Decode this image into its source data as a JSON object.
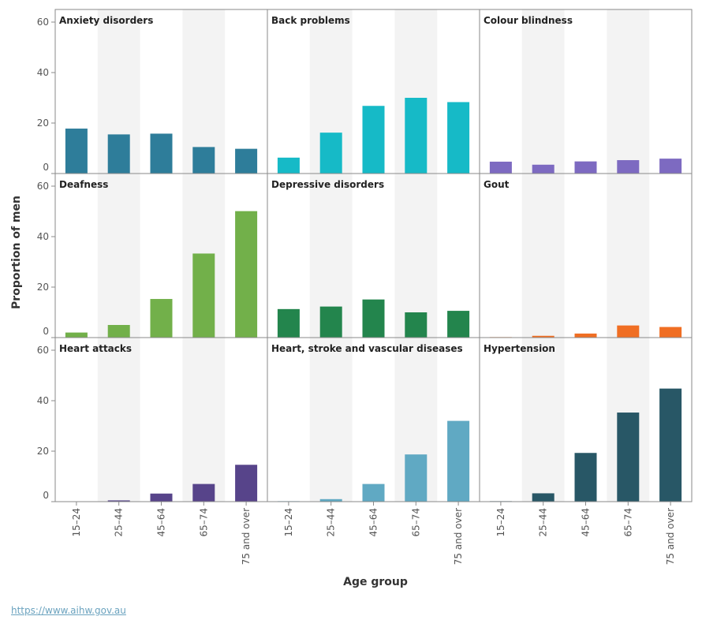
{
  "source_link": "https://www.aihw.gov.au",
  "chart_data": {
    "type": "bar",
    "xlabel": "Age group",
    "ylabel": "Proportion of men",
    "ylim": [
      0,
      65
    ],
    "yticks": [
      0,
      20,
      40,
      60
    ],
    "categories": [
      "15–24",
      "25–44",
      "45–64",
      "65–74",
      "75 and over"
    ],
    "panels": [
      {
        "title": "Anxiety disorders",
        "color": "#2e7d9a",
        "values": [
          17.8,
          15.5,
          15.8,
          10.5,
          9.8
        ]
      },
      {
        "title": "Back problems",
        "color": "#16bac7",
        "values": [
          6.3,
          16.2,
          26.8,
          30.0,
          28.3
        ]
      },
      {
        "title": "Colour blindness",
        "color": "#7d6ac1",
        "values": [
          4.7,
          3.5,
          4.8,
          5.3,
          5.9
        ]
      },
      {
        "title": "Deafness",
        "color": "#72b04a",
        "values": [
          2.0,
          5.0,
          15.3,
          33.3,
          50.1
        ]
      },
      {
        "title": "Depressive disorders",
        "color": "#23854d",
        "values": [
          11.3,
          12.3,
          15.1,
          10.0,
          10.6
        ]
      },
      {
        "title": "Gout",
        "color": "#f06e23",
        "values": [
          0.2,
          0.7,
          1.6,
          4.8,
          4.2
        ]
      },
      {
        "title": "Heart attacks",
        "color": "#57448a",
        "values": [
          0.1,
          0.5,
          3.2,
          7.0,
          14.6
        ]
      },
      {
        "title": "Heart, stroke and vascular diseases",
        "color": "#60a9c3",
        "values": [
          0.2,
          1.0,
          7.0,
          18.7,
          32.0
        ]
      },
      {
        "title": "Hypertension",
        "color": "#285766",
        "values": [
          0.2,
          3.3,
          19.3,
          35.3,
          44.8
        ]
      }
    ]
  }
}
